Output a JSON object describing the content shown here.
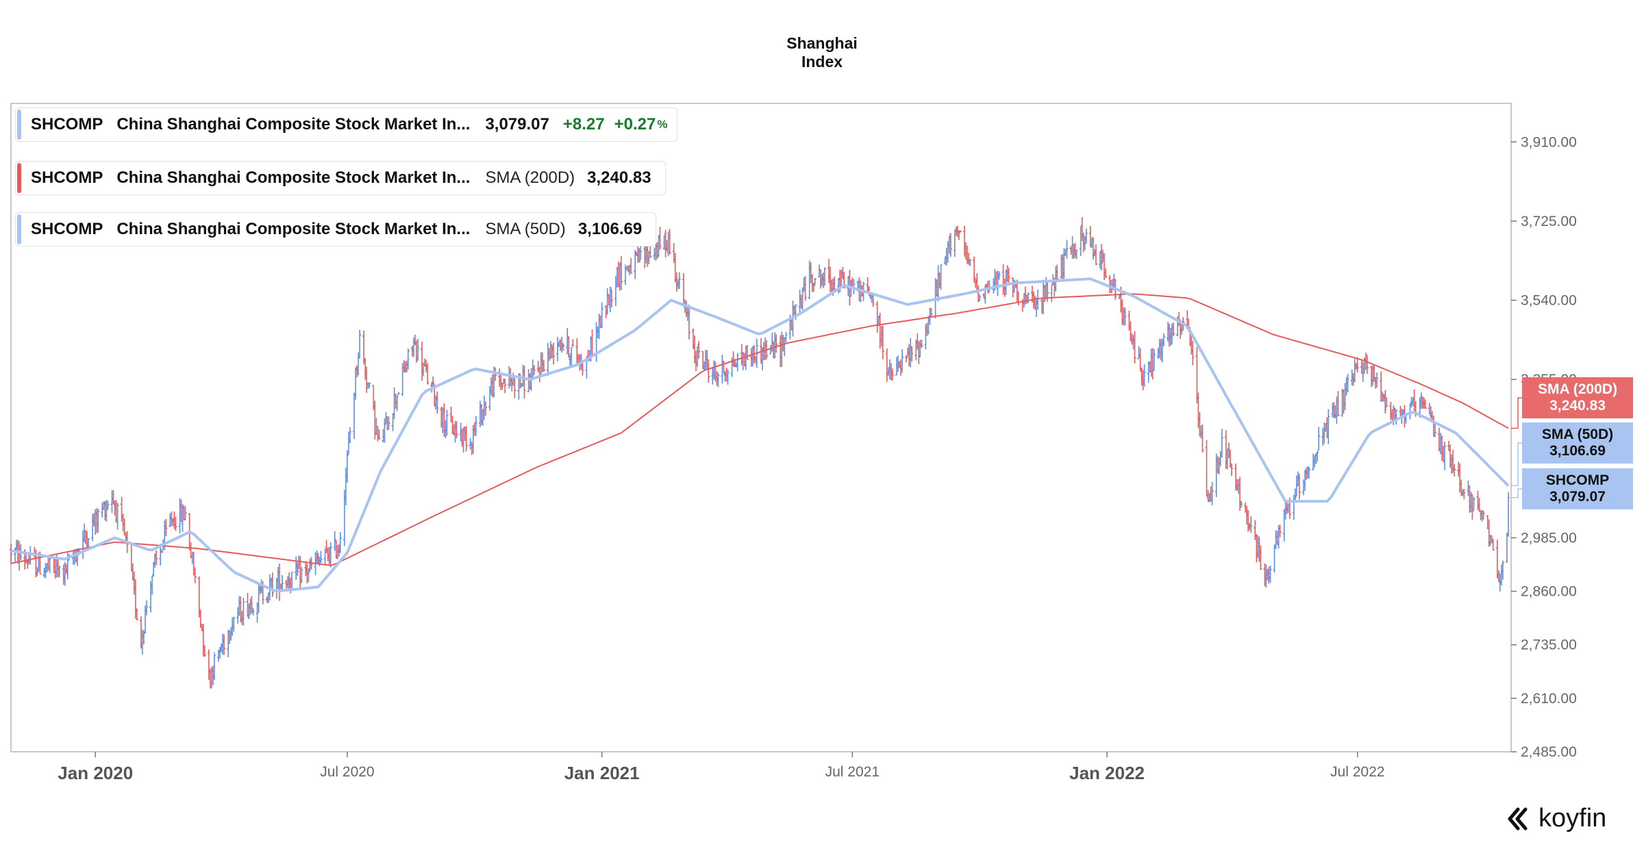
{
  "title_lines": [
    "Shanghai",
    "Index"
  ],
  "legend": [
    {
      "ticker": "SHCOMP",
      "name": "China Shanghai Composite Stock Market In...",
      "value": "3,079.07",
      "change": "+8.27",
      "pct": "+0.27",
      "pct_sign": "%",
      "color": "#a9c4f0"
    },
    {
      "ticker": "SHCOMP",
      "name": "China Shanghai Composite Stock Market In...",
      "label": "SMA (200D)",
      "value": "3,240.83",
      "color": "#e55b5b"
    },
    {
      "ticker": "SHCOMP",
      "name": "China Shanghai Composite Stock Market In...",
      "label": "SMA (50D)",
      "value": "3,106.69",
      "color": "#a9c4f0"
    }
  ],
  "tags": [
    {
      "label": "SMA (200D)",
      "value": "3,240.83",
      "bg": "#e86a6a",
      "fg": "#ffffff"
    },
    {
      "label": "SMA (50D)",
      "value": "3,106.69",
      "bg": "#a9c4f0",
      "fg": "#111111"
    },
    {
      "label": "SHCOMP",
      "value": "3,079.07",
      "bg": "#a9c4f0",
      "fg": "#111111"
    }
  ],
  "logo": {
    "text": "koyfin"
  },
  "chart_data": {
    "type": "line",
    "subtype": "ohlc-candles-with-moving-averages",
    "y_axis_position": "right",
    "ylim": [
      2485,
      4000
    ],
    "y_ticks": [
      {
        "value": 2485,
        "label": "2,485.00"
      },
      {
        "value": 2610,
        "label": "2,610.00"
      },
      {
        "value": 2735,
        "label": "2,735.00"
      },
      {
        "value": 2860,
        "label": "2,860.00"
      },
      {
        "value": 2985,
        "label": "2,985.00"
      },
      {
        "value": 3355,
        "label": "3,355.00"
      },
      {
        "value": 3540,
        "label": "3,540.00"
      },
      {
        "value": 3725,
        "label": "3,725.00"
      },
      {
        "value": 3910,
        "label": "3,910.00"
      }
    ],
    "xlim": [
      "2019-11-01",
      "2022-10-20"
    ],
    "x_ticks": [
      {
        "date": "2020-01-01",
        "label": "Jan 2020",
        "major": true
      },
      {
        "date": "2020-07-01",
        "label": "Jul 2020",
        "major": false
      },
      {
        "date": "2021-01-01",
        "label": "Jan 2021",
        "major": true
      },
      {
        "date": "2021-07-01",
        "label": "Jul 2021",
        "major": false
      },
      {
        "date": "2022-01-01",
        "label": "Jan 2022",
        "major": true
      },
      {
        "date": "2022-07-01",
        "label": "Jul 2022",
        "major": false
      }
    ],
    "price_anchors": [
      [
        "2019-11-01",
        2955
      ],
      [
        "2019-11-20",
        2920
      ],
      [
        "2019-12-10",
        2905
      ],
      [
        "2019-12-25",
        2990
      ],
      [
        "2020-01-13",
        3085
      ],
      [
        "2020-01-23",
        2975
      ],
      [
        "2020-02-03",
        2745
      ],
      [
        "2020-02-10",
        2890
      ],
      [
        "2020-02-25",
        3030
      ],
      [
        "2020-03-06",
        3040
      ],
      [
        "2020-03-23",
        2660
      ],
      [
        "2020-04-10",
        2800
      ],
      [
        "2020-05-10",
        2880
      ],
      [
        "2020-06-01",
        2905
      ],
      [
        "2020-06-25",
        2965
      ],
      [
        "2020-07-06",
        3335
      ],
      [
        "2020-07-10",
        3450
      ],
      [
        "2020-07-24",
        3200
      ],
      [
        "2020-08-18",
        3440
      ],
      [
        "2020-09-10",
        3250
      ],
      [
        "2020-09-28",
        3215
      ],
      [
        "2020-10-15",
        3350
      ],
      [
        "2020-11-10",
        3350
      ],
      [
        "2020-12-01",
        3450
      ],
      [
        "2020-12-20",
        3390
      ],
      [
        "2021-01-12",
        3600
      ],
      [
        "2021-02-18",
        3680
      ],
      [
        "2021-03-09",
        3420
      ],
      [
        "2021-03-24",
        3365
      ],
      [
        "2021-04-15",
        3410
      ],
      [
        "2021-05-10",
        3430
      ],
      [
        "2021-06-01",
        3600
      ],
      [
        "2021-06-24",
        3580
      ],
      [
        "2021-07-15",
        3550
      ],
      [
        "2021-07-28",
        3360
      ],
      [
        "2021-08-20",
        3440
      ],
      [
        "2021-09-13",
        3715
      ],
      [
        "2021-09-30",
        3560
      ],
      [
        "2021-10-20",
        3590
      ],
      [
        "2021-11-10",
        3520
      ],
      [
        "2021-12-13",
        3690
      ],
      [
        "2021-12-31",
        3620
      ],
      [
        "2022-01-28",
        3360
      ],
      [
        "2022-02-15",
        3460
      ],
      [
        "2022-03-01",
        3480
      ],
      [
        "2022-03-15",
        3060
      ],
      [
        "2022-03-25",
        3210
      ],
      [
        "2022-04-26",
        2890
      ],
      [
        "2022-05-10",
        3040
      ],
      [
        "2022-06-01",
        3190
      ],
      [
        "2022-07-05",
        3400
      ],
      [
        "2022-07-28",
        3270
      ],
      [
        "2022-08-18",
        3290
      ],
      [
        "2022-09-01",
        3190
      ],
      [
        "2022-09-30",
        3020
      ],
      [
        "2022-10-12",
        2900
      ],
      [
        "2022-10-18",
        3020
      ]
    ],
    "series": [
      {
        "name": "SHCOMP",
        "kind": "ohlc",
        "up_color": "#5b8ee0",
        "down_color": "#e55b5b",
        "last": 3079.07
      },
      {
        "name": "SMA (200D)",
        "kind": "line",
        "color": "#e55b5b",
        "last": 3240.83,
        "points": [
          [
            "2019-11-01",
            2925
          ],
          [
            "2020-01-15",
            2975
          ],
          [
            "2020-03-15",
            2960
          ],
          [
            "2020-06-20",
            2920
          ],
          [
            "2020-09-01",
            3035
          ],
          [
            "2020-11-15",
            3150
          ],
          [
            "2021-01-15",
            3230
          ],
          [
            "2021-03-15",
            3375
          ],
          [
            "2021-05-15",
            3440
          ],
          [
            "2021-07-15",
            3480
          ],
          [
            "2021-09-15",
            3510
          ],
          [
            "2021-11-15",
            3545
          ],
          [
            "2022-01-20",
            3555
          ],
          [
            "2022-03-01",
            3545
          ],
          [
            "2022-05-01",
            3460
          ],
          [
            "2022-07-05",
            3400
          ],
          [
            "2022-08-15",
            3345
          ],
          [
            "2022-09-15",
            3300
          ],
          [
            "2022-10-18",
            3240.83
          ]
        ]
      },
      {
        "name": "SMA (50D)",
        "kind": "line",
        "color": "#a9c4f0",
        "last": 3106.69,
        "points": [
          [
            "2019-11-01",
            2955
          ],
          [
            "2019-12-10",
            2935
          ],
          [
            "2020-01-15",
            2985
          ],
          [
            "2020-02-10",
            2955
          ],
          [
            "2020-03-10",
            3000
          ],
          [
            "2020-04-10",
            2905
          ],
          [
            "2020-05-10",
            2860
          ],
          [
            "2020-06-10",
            2870
          ],
          [
            "2020-07-01",
            2950
          ],
          [
            "2020-07-25",
            3140
          ],
          [
            "2020-08-25",
            3325
          ],
          [
            "2020-10-01",
            3380
          ],
          [
            "2020-11-10",
            3355
          ],
          [
            "2020-12-15",
            3390
          ],
          [
            "2021-01-25",
            3470
          ],
          [
            "2021-02-20",
            3540
          ],
          [
            "2021-03-25",
            3500
          ],
          [
            "2021-04-25",
            3460
          ],
          [
            "2021-05-25",
            3510
          ],
          [
            "2021-06-25",
            3575
          ],
          [
            "2021-08-10",
            3530
          ],
          [
            "2021-09-20",
            3555
          ],
          [
            "2021-10-25",
            3580
          ],
          [
            "2021-12-20",
            3590
          ],
          [
            "2022-01-20",
            3550
          ],
          [
            "2022-02-28",
            3480
          ],
          [
            "2022-03-31",
            3300
          ],
          [
            "2022-05-10",
            3070
          ],
          [
            "2022-06-10",
            3070
          ],
          [
            "2022-07-10",
            3230
          ],
          [
            "2022-08-10",
            3280
          ],
          [
            "2022-09-10",
            3230
          ],
          [
            "2022-10-18",
            3106.69
          ]
        ]
      }
    ]
  }
}
